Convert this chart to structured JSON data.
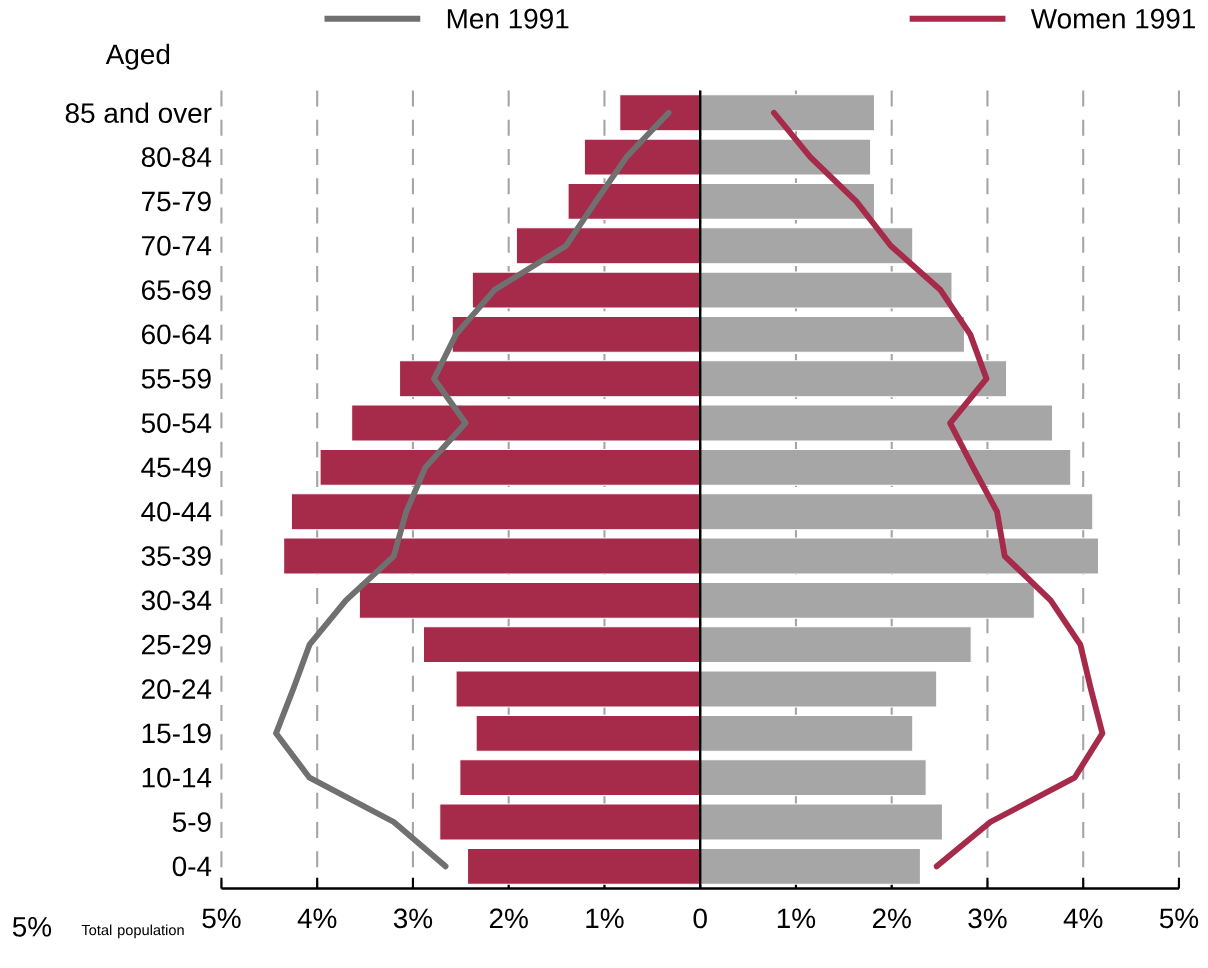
{
  "chart_data": {
    "type": "bar",
    "orientation": "horizontal",
    "ylabel": "Aged",
    "categories": [
      "85 and over",
      "80-84",
      "75-79",
      "70-74",
      "65-69",
      "60-64",
      "55-59",
      "50-54",
      "45-49",
      "40-44",
      "35-39",
      "30-34",
      "25-29",
      "20-24",
      "15-19",
      "10-14",
      "5-9",
      "0-4"
    ],
    "series": [
      {
        "color": "#a62a4a",
        "values": [
          -0.84,
          -1.21,
          -1.38,
          -1.92,
          -2.38,
          -2.59,
          -3.14,
          -3.64,
          -3.97,
          -4.27,
          -4.35,
          -3.56,
          -2.89,
          -2.55,
          -2.34,
          -2.51,
          -2.72,
          -2.43
        ]
      },
      {
        "color": "#a6a6a6",
        "values": [
          1.82,
          1.78,
          1.82,
          2.22,
          2.63,
          2.76,
          3.2,
          3.68,
          3.87,
          4.1,
          4.16,
          3.49,
          2.83,
          2.47,
          2.22,
          2.36,
          2.53,
          2.3
        ]
      },
      {
        "type": "line",
        "name": "Men 1991",
        "color": "#707070",
        "values": [
          -0.33,
          -0.77,
          -1.09,
          -1.4,
          -2.15,
          -2.55,
          -2.78,
          -2.45,
          -2.87,
          -3.07,
          -3.2,
          -3.7,
          -4.08,
          -4.25,
          -4.43,
          -4.08,
          -3.2,
          -2.66
        ]
      },
      {
        "type": "line",
        "name": "Women 1991",
        "color": "#a62a4a",
        "values": [
          0.77,
          1.15,
          1.63,
          1.99,
          2.51,
          2.82,
          2.99,
          2.61,
          2.85,
          3.1,
          3.18,
          3.66,
          3.97,
          4.08,
          4.2,
          3.91,
          3.03,
          2.47
        ]
      }
    ],
    "xlim": [
      -5,
      5
    ],
    "xticks": [
      {
        "value": -5,
        "label": "5%"
      },
      {
        "value": -4,
        "label": "4%"
      },
      {
        "value": -3,
        "label": "3%"
      },
      {
        "value": -2,
        "label": "2%"
      },
      {
        "value": -1,
        "label": "1%"
      },
      0,
      {
        "value": 1,
        "label": "1%"
      },
      {
        "value": 2,
        "label": "2%"
      },
      {
        "value": 3,
        "label": "3%"
      },
      {
        "value": 4,
        "label": "4%"
      },
      {
        "value": 5,
        "label": "5%"
      }
    ],
    "grid": "x",
    "legend": "top",
    "stacked": true,
    "annotations": [
      "5%",
      "Total population"
    ]
  }
}
